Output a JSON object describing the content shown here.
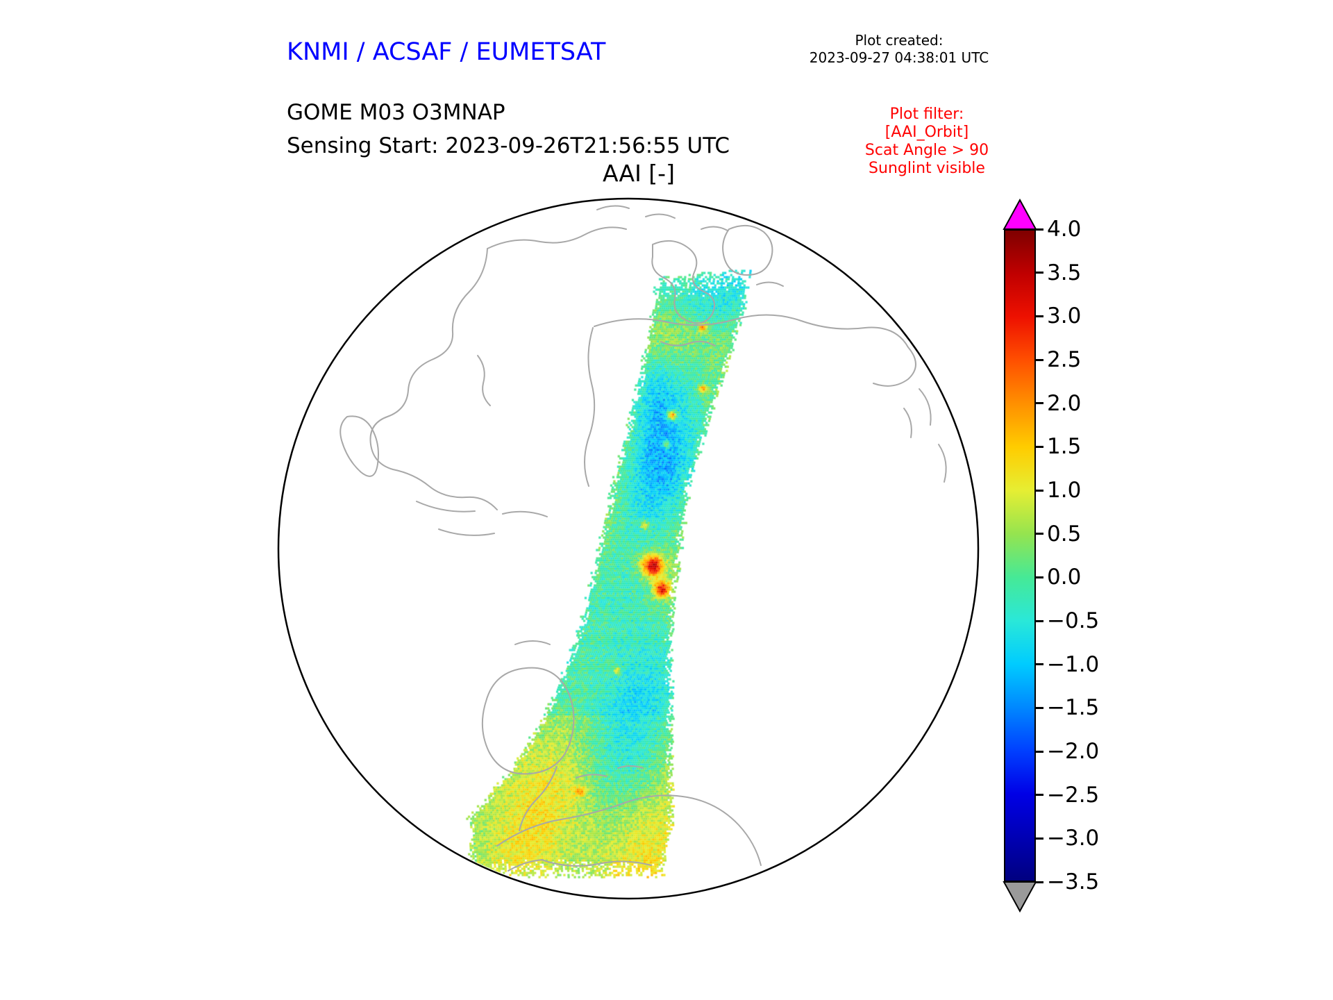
{
  "header": {
    "agency_title": "KNMI / ACSAF / EUMETSAT",
    "plot_created_label": "Plot created:",
    "plot_created_value": "2023-09-27 04:38:01 UTC",
    "product_line1": "GOME M03 O3MNAP",
    "product_line2": "Sensing Start: 2023-09-26T21:56:55 UTC",
    "plot_title": "AAI [-]"
  },
  "plot_filter": {
    "color": "#ff0000",
    "lines": [
      "Plot filter:",
      "[AAI_Orbit]",
      "Scat Angle > 90",
      "Sunglint visible"
    ]
  },
  "colors": {
    "agency_title_blue": "#0000ff",
    "coastline_gray": "#a8a8a8",
    "globe_outline": "#000000",
    "background": "#ffffff"
  },
  "chart_data": {
    "type": "heatmap",
    "title": "AAI [-]",
    "variable": "Absorbing Aerosol Index [-]",
    "projection": "orthographic globe",
    "satellite_product": "GOME M03 O3MNAP",
    "sensing_start_utc": "2023-09-26T21:56:55 UTC",
    "plot_created_utc": "2023-09-27 04:38:01 UTC",
    "swath_description": "Single polar-orbit measurement swath crossing the visible hemisphere from the Arctic (top) to the south (bottom); AAI values mostly between -1.5 and 1.0 (cyan to yellow-green speckle), isolated red hotspots up to about 3 near the swath centre, and more yellow values around 1 toward the southern end of the swath.",
    "typical_value_range": [
      -1.5,
      1.0
    ],
    "hotspot_value_approx": 3.0,
    "colorbar": {
      "min": -3.5,
      "max": 4.0,
      "tick_step": 0.5,
      "tick_labels": [
        "4.0",
        "3.5",
        "3.0",
        "2.5",
        "2.0",
        "1.5",
        "1.0",
        "0.5",
        "0.0",
        "−0.5",
        "−1.0",
        "−1.5",
        "−2.0",
        "−2.5",
        "−3.0",
        "−3.5"
      ],
      "over_arrow_color": "#ff00ff",
      "under_arrow_color": "#9a9a9a",
      "colormap_stops": [
        {
          "v": -3.5,
          "c": "#000080"
        },
        {
          "v": -3.0,
          "c": "#0000b4"
        },
        {
          "v": -2.5,
          "c": "#0000e6"
        },
        {
          "v": -2.0,
          "c": "#0040ff"
        },
        {
          "v": -1.5,
          "c": "#0088ff"
        },
        {
          "v": -1.0,
          "c": "#00ccff"
        },
        {
          "v": -0.5,
          "c": "#2ae8d8"
        },
        {
          "v": 0.0,
          "c": "#46e996"
        },
        {
          "v": 0.5,
          "c": "#95e44f"
        },
        {
          "v": 1.0,
          "c": "#e6ee33"
        },
        {
          "v": 1.5,
          "c": "#ffcc00"
        },
        {
          "v": 2.0,
          "c": "#ff9000"
        },
        {
          "v": 2.5,
          "c": "#ff5000"
        },
        {
          "v": 3.0,
          "c": "#ee1100"
        },
        {
          "v": 3.5,
          "c": "#c00000"
        },
        {
          "v": 4.0,
          "c": "#7f0000"
        }
      ]
    }
  }
}
